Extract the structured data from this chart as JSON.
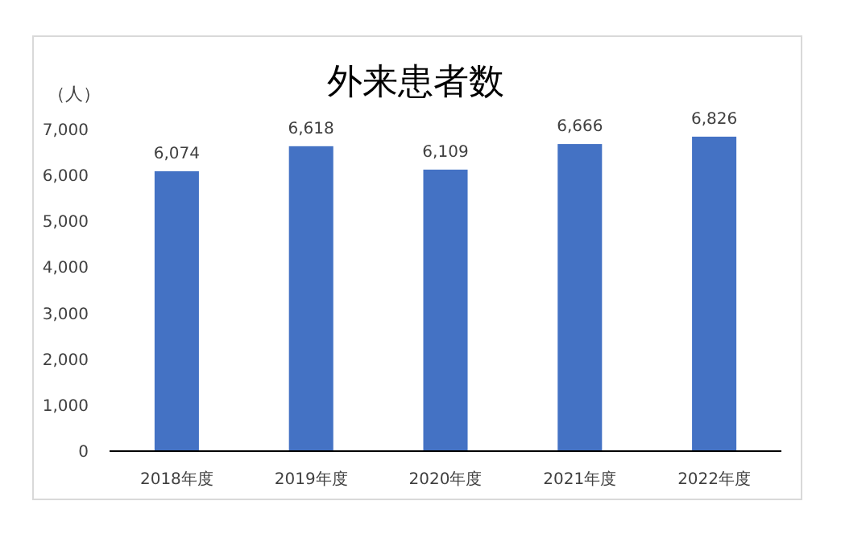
{
  "chart_data": {
    "type": "bar",
    "title": "外来患者数",
    "ylabel": "（人）",
    "categories": [
      "2018年度",
      "2019年度",
      "2020年度",
      "2021年度",
      "2022年度"
    ],
    "values": [
      6074,
      6618,
      6109,
      6666,
      6826
    ],
    "value_labels": [
      "6,074",
      "6,618",
      "6,109",
      "6,666",
      "6,826"
    ],
    "color": "#4472c4",
    "ylim": [
      0,
      7000
    ],
    "yticks": [
      0,
      {
        "value": 1000,
        "label": "1,000"
      },
      {
        "value": 2000,
        "label": "2,000"
      },
      {
        "value": 3000,
        "label": "3,000"
      },
      {
        "value": 4000,
        "label": "4,000"
      },
      {
        "value": 5000,
        "label": "5,000"
      },
      {
        "value": 6000,
        "label": "6,000"
      },
      {
        "value": 7000,
        "label": "7,000"
      }
    ]
  }
}
